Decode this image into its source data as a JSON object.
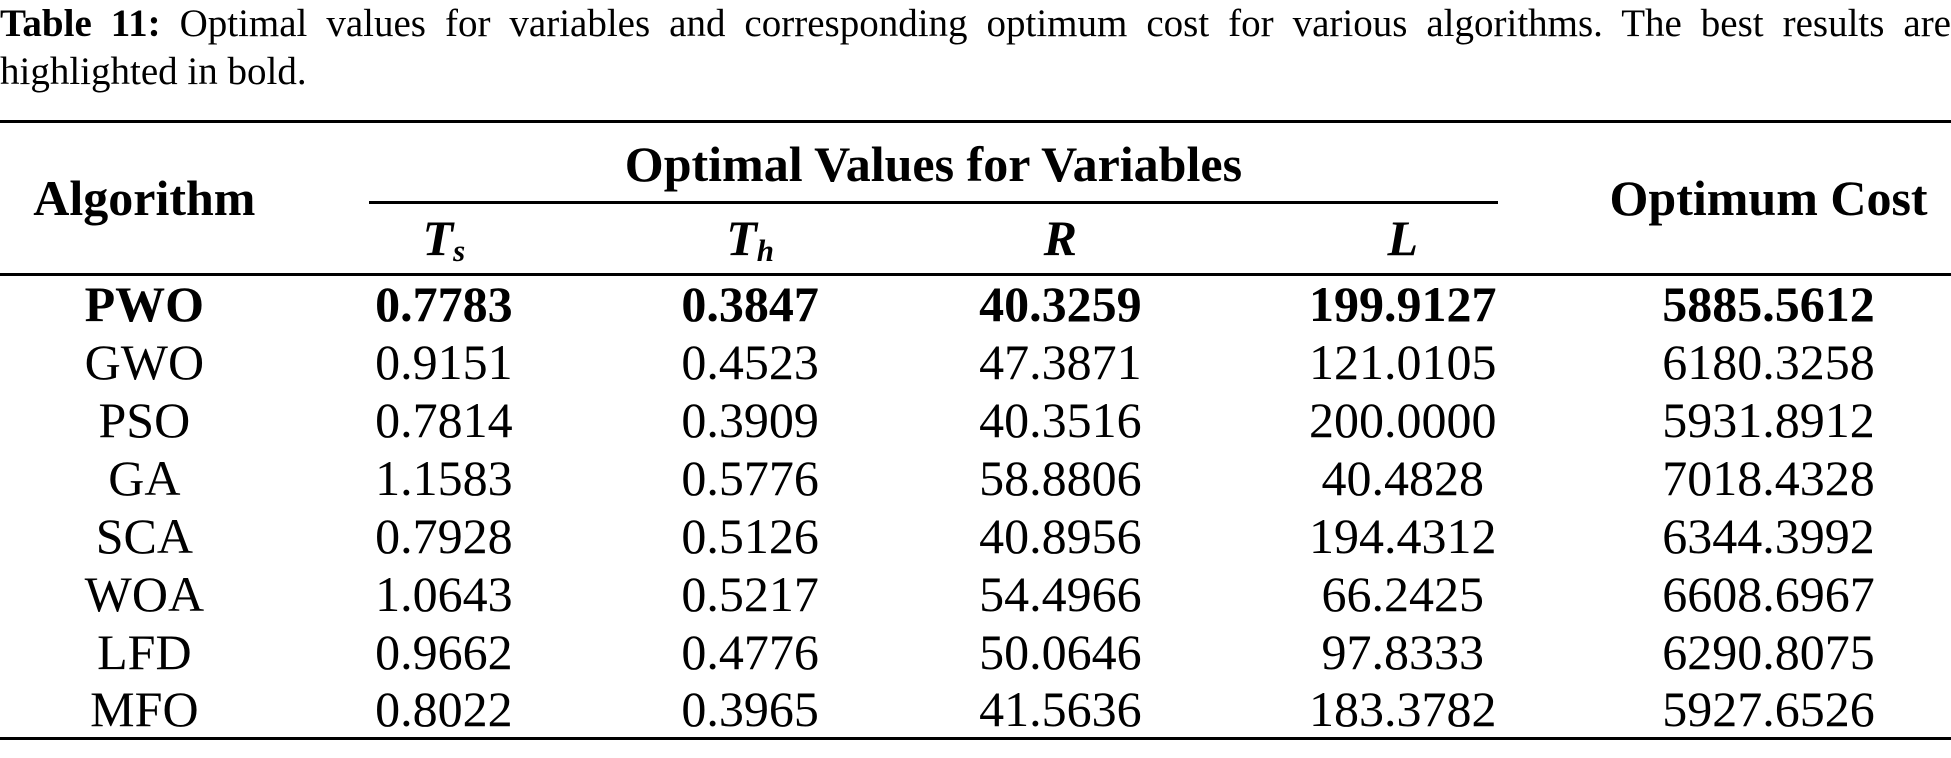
{
  "caption": {
    "label": "Table 11:",
    "line1_rest": "Optimal values for variables and corresponding optimum cost for various algorithms. The best results are",
    "line2": "highlighted in bold."
  },
  "table": {
    "col_algorithm": "Algorithm",
    "span_header": "Optimal Values for Variables",
    "col_cost": "Optimum Cost",
    "variable_headers": [
      {
        "base": "T",
        "sub": "s"
      },
      {
        "base": "T",
        "sub": "h"
      },
      {
        "base": "R",
        "sub": ""
      },
      {
        "base": "L",
        "sub": ""
      }
    ],
    "rows": [
      {
        "algorithm": "PWO",
        "ts": "0.7783",
        "th": "0.3847",
        "r": "40.3259",
        "l": "199.9127",
        "cost": "5885.5612",
        "bold": true
      },
      {
        "algorithm": "GWO",
        "ts": "0.9151",
        "th": "0.4523",
        "r": "47.3871",
        "l": "121.0105",
        "cost": "6180.3258",
        "bold": false
      },
      {
        "algorithm": "PSO",
        "ts": "0.7814",
        "th": "0.3909",
        "r": "40.3516",
        "l": "200.0000",
        "cost": "5931.8912",
        "bold": false
      },
      {
        "algorithm": "GA",
        "ts": "1.1583",
        "th": "0.5776",
        "r": "58.8806",
        "l": "40.4828",
        "cost": "7018.4328",
        "bold": false
      },
      {
        "algorithm": "SCA",
        "ts": "0.7928",
        "th": "0.5126",
        "r": "40.8956",
        "l": "194.4312",
        "cost": "6344.3992",
        "bold": false
      },
      {
        "algorithm": "WOA",
        "ts": "1.0643",
        "th": "0.5217",
        "r": "54.4966",
        "l": "66.2425",
        "cost": "6608.6967",
        "bold": false
      },
      {
        "algorithm": "LFD",
        "ts": "0.9662",
        "th": "0.4776",
        "r": "50.0646",
        "l": "97.8333",
        "cost": "6290.8075",
        "bold": false
      },
      {
        "algorithm": "MFO",
        "ts": "0.8022",
        "th": "0.3965",
        "r": "41.5636",
        "l": "183.3782",
        "cost": "5927.6526",
        "bold": false
      }
    ]
  }
}
